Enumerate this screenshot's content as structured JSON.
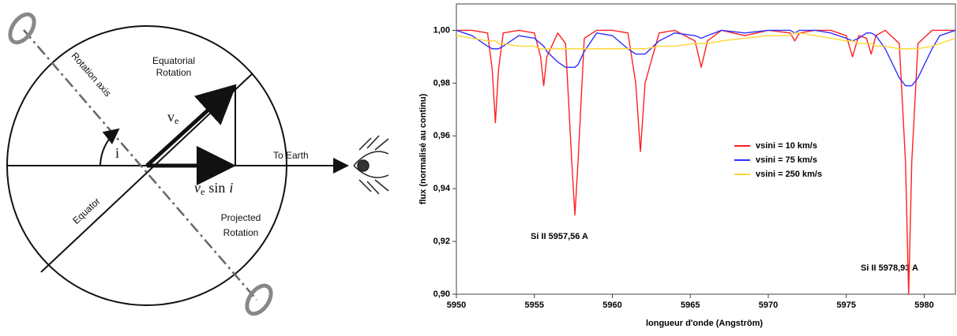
{
  "diagram": {
    "rotation_axis": "Rotation axis",
    "equatorial_rotation": [
      "Equatorial",
      "Rotation"
    ],
    "velocity": {
      "symbol": "v",
      "subscript": "e"
    },
    "angle": "i",
    "to_earth": "To Earth",
    "projected_velocity": {
      "symbol": "v",
      "subscript": "e",
      "text": "sin",
      "angle": "i"
    },
    "equator": "Equator",
    "projected_rotation": [
      "Projected",
      "Rotation"
    ]
  },
  "chart_data": {
    "type": "line",
    "x_label": "longueur d'onde (Angström)",
    "y_label": "flux (normalisé au continu)",
    "annotations": [
      "Si II 5957,56 A",
      "Si II 5978,93 A"
    ],
    "xlim": [
      5950,
      5982
    ],
    "ylim": [
      0.9,
      1.01
    ],
    "xticks": [
      5950,
      5955,
      5960,
      5965,
      5970,
      5975,
      5980
    ],
    "yticks": [
      {
        "value": 0.9,
        "label": "0,90"
      },
      {
        "value": 0.92,
        "label": "0,92"
      },
      {
        "value": 0.94,
        "label": "0,94"
      },
      {
        "value": 0.96,
        "label": "0,96"
      },
      {
        "value": 0.98,
        "label": "0,98"
      },
      {
        "value": 1.0,
        "label": "1,00"
      }
    ],
    "x": [
      5950,
      5951,
      5952,
      5952.3,
      5952.5,
      5952.7,
      5953,
      5954,
      5955,
      5955.4,
      5955.6,
      5955.8,
      5956.5,
      5957,
      5957.4,
      5957.6,
      5957.8,
      5958.2,
      5959,
      5960,
      5961,
      5961.5,
      5961.8,
      5962.1,
      5963,
      5964,
      5965.3,
      5965.7,
      5966.1,
      5967,
      5968.5,
      5970,
      5971.4,
      5971.7,
      5972,
      5973,
      5974,
      5975,
      5975.4,
      5975.8,
      5976.3,
      5976.6,
      5976.9,
      5977.5,
      5978.4,
      5978.8,
      5979,
      5979.2,
      5979.6,
      5980.5,
      5981,
      5982
    ],
    "series": [
      {
        "name": "vsini = 10 km/s",
        "color": "#ff2020",
        "values": [
          1.0,
          1.0,
          0.999,
          0.985,
          0.965,
          0.985,
          0.999,
          1.0,
          0.999,
          0.99,
          0.979,
          0.99,
          0.999,
          0.995,
          0.95,
          0.93,
          0.95,
          0.997,
          1.0,
          1.0,
          0.999,
          0.98,
          0.954,
          0.98,
          0.999,
          1.0,
          0.996,
          0.986,
          0.996,
          1.0,
          0.998,
          1.0,
          0.999,
          0.996,
          0.999,
          1.0,
          1.0,
          0.998,
          0.99,
          0.998,
          0.997,
          0.991,
          0.998,
          1.0,
          0.995,
          0.95,
          0.9,
          0.95,
          0.995,
          1.0,
          1.0,
          1.0
        ]
      },
      {
        "name": "vsini = 75 km/s",
        "color": "#3030ff",
        "values": [
          1.0,
          0.998,
          0.994,
          0.993,
          0.993,
          0.993,
          0.994,
          0.998,
          0.997,
          0.995,
          0.994,
          0.992,
          0.988,
          0.986,
          0.986,
          0.986,
          0.987,
          0.992,
          0.999,
          0.998,
          0.993,
          0.991,
          0.991,
          0.991,
          0.996,
          0.999,
          0.998,
          0.997,
          0.998,
          1.0,
          0.999,
          1.0,
          1.0,
          0.999,
          1.0,
          1.0,
          0.999,
          0.997,
          0.996,
          0.997,
          0.999,
          0.999,
          0.998,
          0.993,
          0.982,
          0.979,
          0.979,
          0.979,
          0.982,
          0.993,
          0.998,
          1.0
        ]
      },
      {
        "name": "vsini = 250 km/s",
        "color": "#ffd633",
        "values": [
          0.998,
          0.997,
          0.996,
          0.996,
          0.996,
          0.995,
          0.995,
          0.994,
          0.994,
          0.993,
          0.993,
          0.993,
          0.993,
          0.993,
          0.993,
          0.993,
          0.993,
          0.993,
          0.993,
          0.993,
          0.993,
          0.993,
          0.993,
          0.993,
          0.994,
          0.994,
          0.995,
          0.995,
          0.995,
          0.996,
          0.997,
          0.998,
          0.998,
          0.999,
          0.999,
          0.998,
          0.997,
          0.996,
          0.996,
          0.995,
          0.995,
          0.995,
          0.994,
          0.994,
          0.993,
          0.993,
          0.993,
          0.993,
          0.993,
          0.994,
          0.995,
          0.997
        ]
      }
    ]
  }
}
